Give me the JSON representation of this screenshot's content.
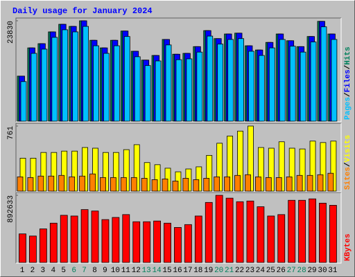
{
  "title": "Daily usage for January 2024",
  "chart_data": [
    {
      "type": "bar",
      "ylim": [
        0,
        23830
      ],
      "yticks": [
        23830
      ],
      "legend_separator": "/",
      "series": [
        {
          "name": "Pages",
          "color": "#00c0ff",
          "values": [
            9400,
            16100,
            17100,
            19900,
            21700,
            21200,
            22500,
            17900,
            16100,
            17900,
            20100,
            15300,
            13200,
            14300,
            18100,
            14600,
            14800,
            16400,
            20200,
            18300,
            19400,
            19600,
            16600,
            15600,
            17400,
            19400,
            17800,
            16400,
            18800,
            22400,
            19400
          ]
        },
        {
          "name": "Files",
          "color": "#0000ff",
          "values": [
            10700,
            17400,
            18400,
            21200,
            23000,
            22500,
            23830,
            19200,
            17400,
            19200,
            21400,
            16600,
            14500,
            15600,
            19400,
            15900,
            16100,
            17700,
            21500,
            19600,
            20700,
            20900,
            17900,
            16900,
            18700,
            20700,
            19100,
            17700,
            20100,
            23700,
            20700
          ]
        },
        {
          "name": "Hits",
          "color": "#00805c",
          "values": [
            10700,
            17400,
            18400,
            21200,
            23000,
            22500,
            23830,
            19200,
            17400,
            19200,
            21400,
            16600,
            14500,
            15600,
            19400,
            15900,
            16100,
            17700,
            21500,
            19600,
            20700,
            20900,
            17900,
            16900,
            18700,
            20700,
            19100,
            17700,
            20100,
            23700,
            20700
          ]
        }
      ]
    },
    {
      "type": "bar",
      "ylim": [
        0,
        761
      ],
      "yticks": [
        761
      ],
      "legend_separator": "/",
      "series": [
        {
          "name": "Sites",
          "color": "#ff8000",
          "values": [
            167,
            159,
            176,
            176,
            184,
            167,
            176,
            201,
            159,
            159,
            159,
            159,
            150,
            134,
            142,
            117,
            150,
            134,
            150,
            167,
            167,
            184,
            192,
            167,
            159,
            159,
            167,
            184,
            184,
            192,
            209
          ]
        },
        {
          "name": "Visits",
          "color": "#ffff00",
          "values": [
            385,
            385,
            452,
            452,
            468,
            468,
            510,
            502,
            452,
            452,
            485,
            543,
            334,
            309,
            268,
            226,
            259,
            284,
            418,
            560,
            644,
            702,
            761,
            510,
            502,
            577,
            502,
            493,
            585,
            568,
            585
          ]
        }
      ]
    },
    {
      "type": "bar",
      "ylim": [
        0,
        892633
      ],
      "yticks": [
        892633
      ],
      "categories": [
        "1",
        "2",
        "3",
        "4",
        "5",
        "6",
        "7",
        "8",
        "9",
        "10",
        "11",
        "12",
        "13",
        "14",
        "15",
        "16",
        "17",
        "18",
        "19",
        "20",
        "21",
        "22",
        "23",
        "24",
        "25",
        "26",
        "27",
        "28",
        "29",
        "30",
        "31"
      ],
      "category_colors": [
        "#000000",
        "#000000",
        "#000000",
        "#000000",
        "#000000",
        "#00805c",
        "#00805c",
        "#000000",
        "#000000",
        "#000000",
        "#000000",
        "#000000",
        "#00805c",
        "#00805c",
        "#000000",
        "#000000",
        "#000000",
        "#000000",
        "#000000",
        "#00805c",
        "#00805c",
        "#000000",
        "#000000",
        "#000000",
        "#000000",
        "#000000",
        "#00805c",
        "#00805c",
        "#000000",
        "#000000",
        "#000000"
      ],
      "series": [
        {
          "name": "KBytes",
          "color": "#ff0000",
          "values": [
            379840,
            351350,
            446310,
            522280,
            626740,
            617240,
            702700,
            683710,
            569760,
            598250,
            636230,
            541270,
            541270,
            550770,
            522280,
            465300,
            503290,
            617240,
            797660,
            892633,
            854640,
            807160,
            816660,
            740690,
            617240,
            636230,
            826150,
            826150,
            845140,
            788170,
            759680
          ]
        }
      ]
    }
  ]
}
